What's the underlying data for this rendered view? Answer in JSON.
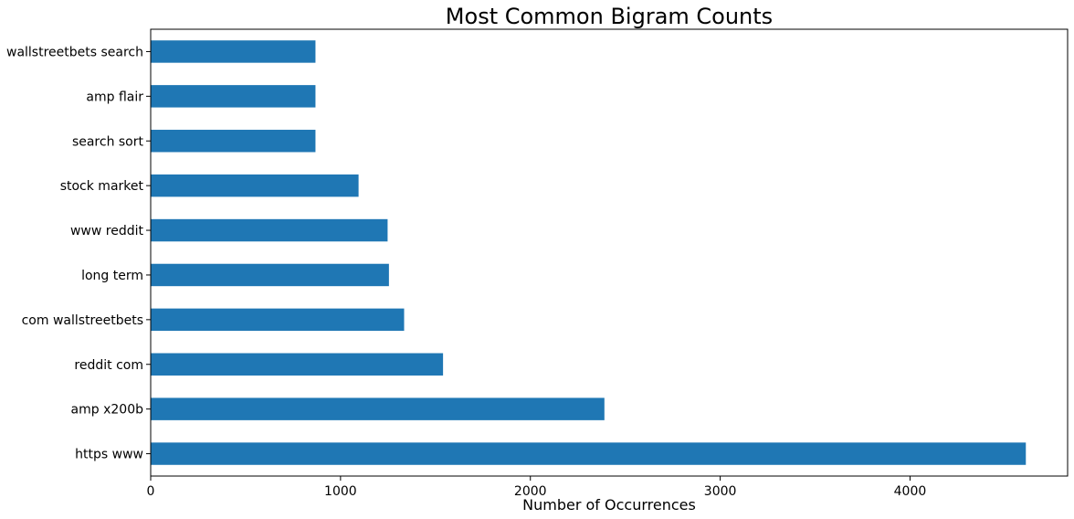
{
  "chart_data": {
    "type": "bar",
    "orientation": "horizontal",
    "title": "Most Common Bigram Counts",
    "xlabel": "Number of Occurrences",
    "ylabel": "",
    "xlim": [
      0,
      4830
    ],
    "xticks": [
      0,
      1000,
      2000,
      3000,
      4000
    ],
    "grid": false,
    "categories": [
      "https www",
      "amp x200b",
      "reddit com",
      "com wallstreetbets",
      "long term",
      "www reddit",
      "stock market",
      "search sort",
      "amp flair",
      "wallstreetbets search"
    ],
    "values": [
      4610,
      2390,
      1540,
      1335,
      1255,
      1248,
      1095,
      868,
      868,
      868
    ],
    "color": "#1f77b4"
  }
}
